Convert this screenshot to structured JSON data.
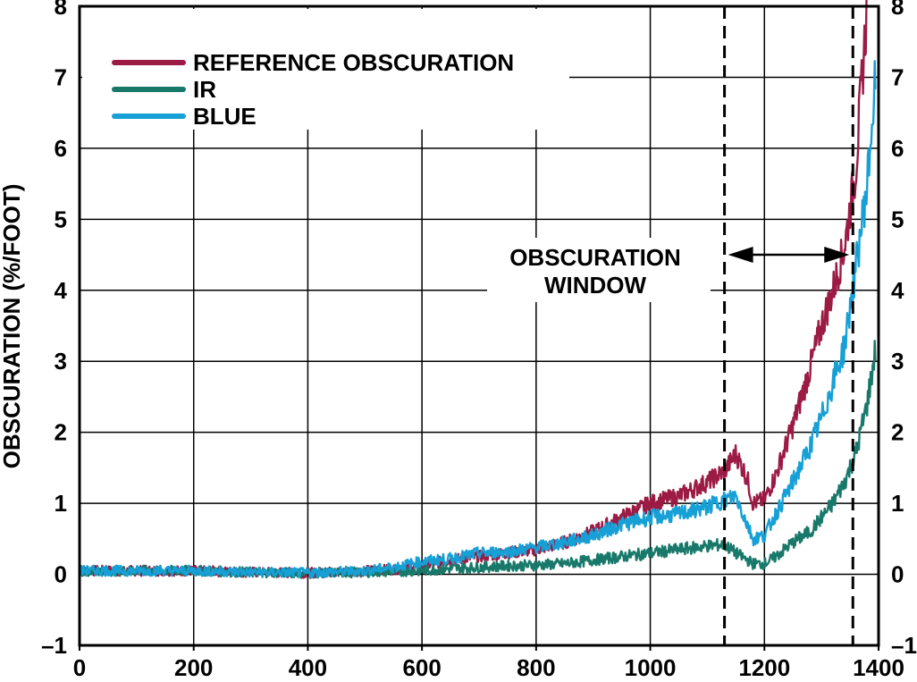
{
  "chart_data": {
    "type": "line",
    "title": "",
    "xlabel": "",
    "ylabel": "OBSCURATION (%/FOOT)",
    "xlim": [
      0,
      1400
    ],
    "ylim": [
      -1,
      8
    ],
    "x_ticks": [
      "0",
      "200",
      "400",
      "600",
      "800",
      "1000",
      "1200",
      "1400"
    ],
    "y_ticks": [
      "8",
      "7",
      "6",
      "5",
      "4",
      "3",
      "2",
      "1",
      "0",
      "–1"
    ],
    "right_y_ticks": [
      "8",
      "7",
      "6",
      "5",
      "4",
      "3",
      "2",
      "1",
      "0",
      "–1"
    ],
    "grid": true,
    "legend_position": "top-left",
    "series": [
      {
        "name": "REFERENCE OBSCURATION",
        "color": "#9b1b45",
        "x": [
          0,
          100,
          200,
          300,
          400,
          500,
          550,
          600,
          650,
          700,
          750,
          800,
          850,
          900,
          950,
          1000,
          1050,
          1100,
          1130,
          1150,
          1170,
          1180,
          1200,
          1220,
          1250,
          1280,
          1300,
          1320,
          1340,
          1360,
          1380
        ],
        "y": [
          0.05,
          0.05,
          0.05,
          0.03,
          0.02,
          0.05,
          0.07,
          0.12,
          0.2,
          0.25,
          0.3,
          0.35,
          0.45,
          0.6,
          0.8,
          1.0,
          1.1,
          1.3,
          1.45,
          1.7,
          1.35,
          1.0,
          1.05,
          1.4,
          2.1,
          2.9,
          3.5,
          4.0,
          4.6,
          5.7,
          8.0
        ]
      },
      {
        "name": "IR",
        "color": "#18796a",
        "x": [
          0,
          100,
          200,
          300,
          400,
          500,
          550,
          600,
          650,
          700,
          750,
          800,
          850,
          900,
          950,
          1000,
          1050,
          1100,
          1130,
          1150,
          1170,
          1180,
          1200,
          1220,
          1250,
          1280,
          1300,
          1320,
          1340,
          1360,
          1380,
          1395
        ],
        "y": [
          0.05,
          0.05,
          0.05,
          0.03,
          0.02,
          0.03,
          0.04,
          0.05,
          0.08,
          0.1,
          0.12,
          0.13,
          0.15,
          0.2,
          0.25,
          0.3,
          0.35,
          0.4,
          0.42,
          0.3,
          0.2,
          0.15,
          0.15,
          0.25,
          0.45,
          0.6,
          0.8,
          1.0,
          1.3,
          1.7,
          2.4,
          3.2
        ]
      },
      {
        "name": "BLUE",
        "color": "#16a0d6",
        "x": [
          0,
          100,
          200,
          300,
          400,
          500,
          550,
          600,
          650,
          700,
          750,
          800,
          850,
          900,
          950,
          1000,
          1050,
          1100,
          1130,
          1150,
          1170,
          1180,
          1200,
          1220,
          1250,
          1280,
          1300,
          1320,
          1340,
          1360,
          1380,
          1395
        ],
        "y": [
          0.05,
          0.05,
          0.05,
          0.03,
          0.02,
          0.05,
          0.1,
          0.18,
          0.22,
          0.3,
          0.32,
          0.38,
          0.45,
          0.55,
          0.7,
          0.8,
          0.85,
          0.95,
          1.05,
          1.1,
          0.7,
          0.5,
          0.55,
          0.85,
          1.3,
          1.8,
          2.2,
          2.7,
          3.2,
          4.3,
          5.5,
          7.0
        ]
      }
    ],
    "annotations": {
      "window_text": [
        "OBSCURATION",
        "WINDOW"
      ],
      "window_start": 1130,
      "window_end": 1355
    }
  }
}
